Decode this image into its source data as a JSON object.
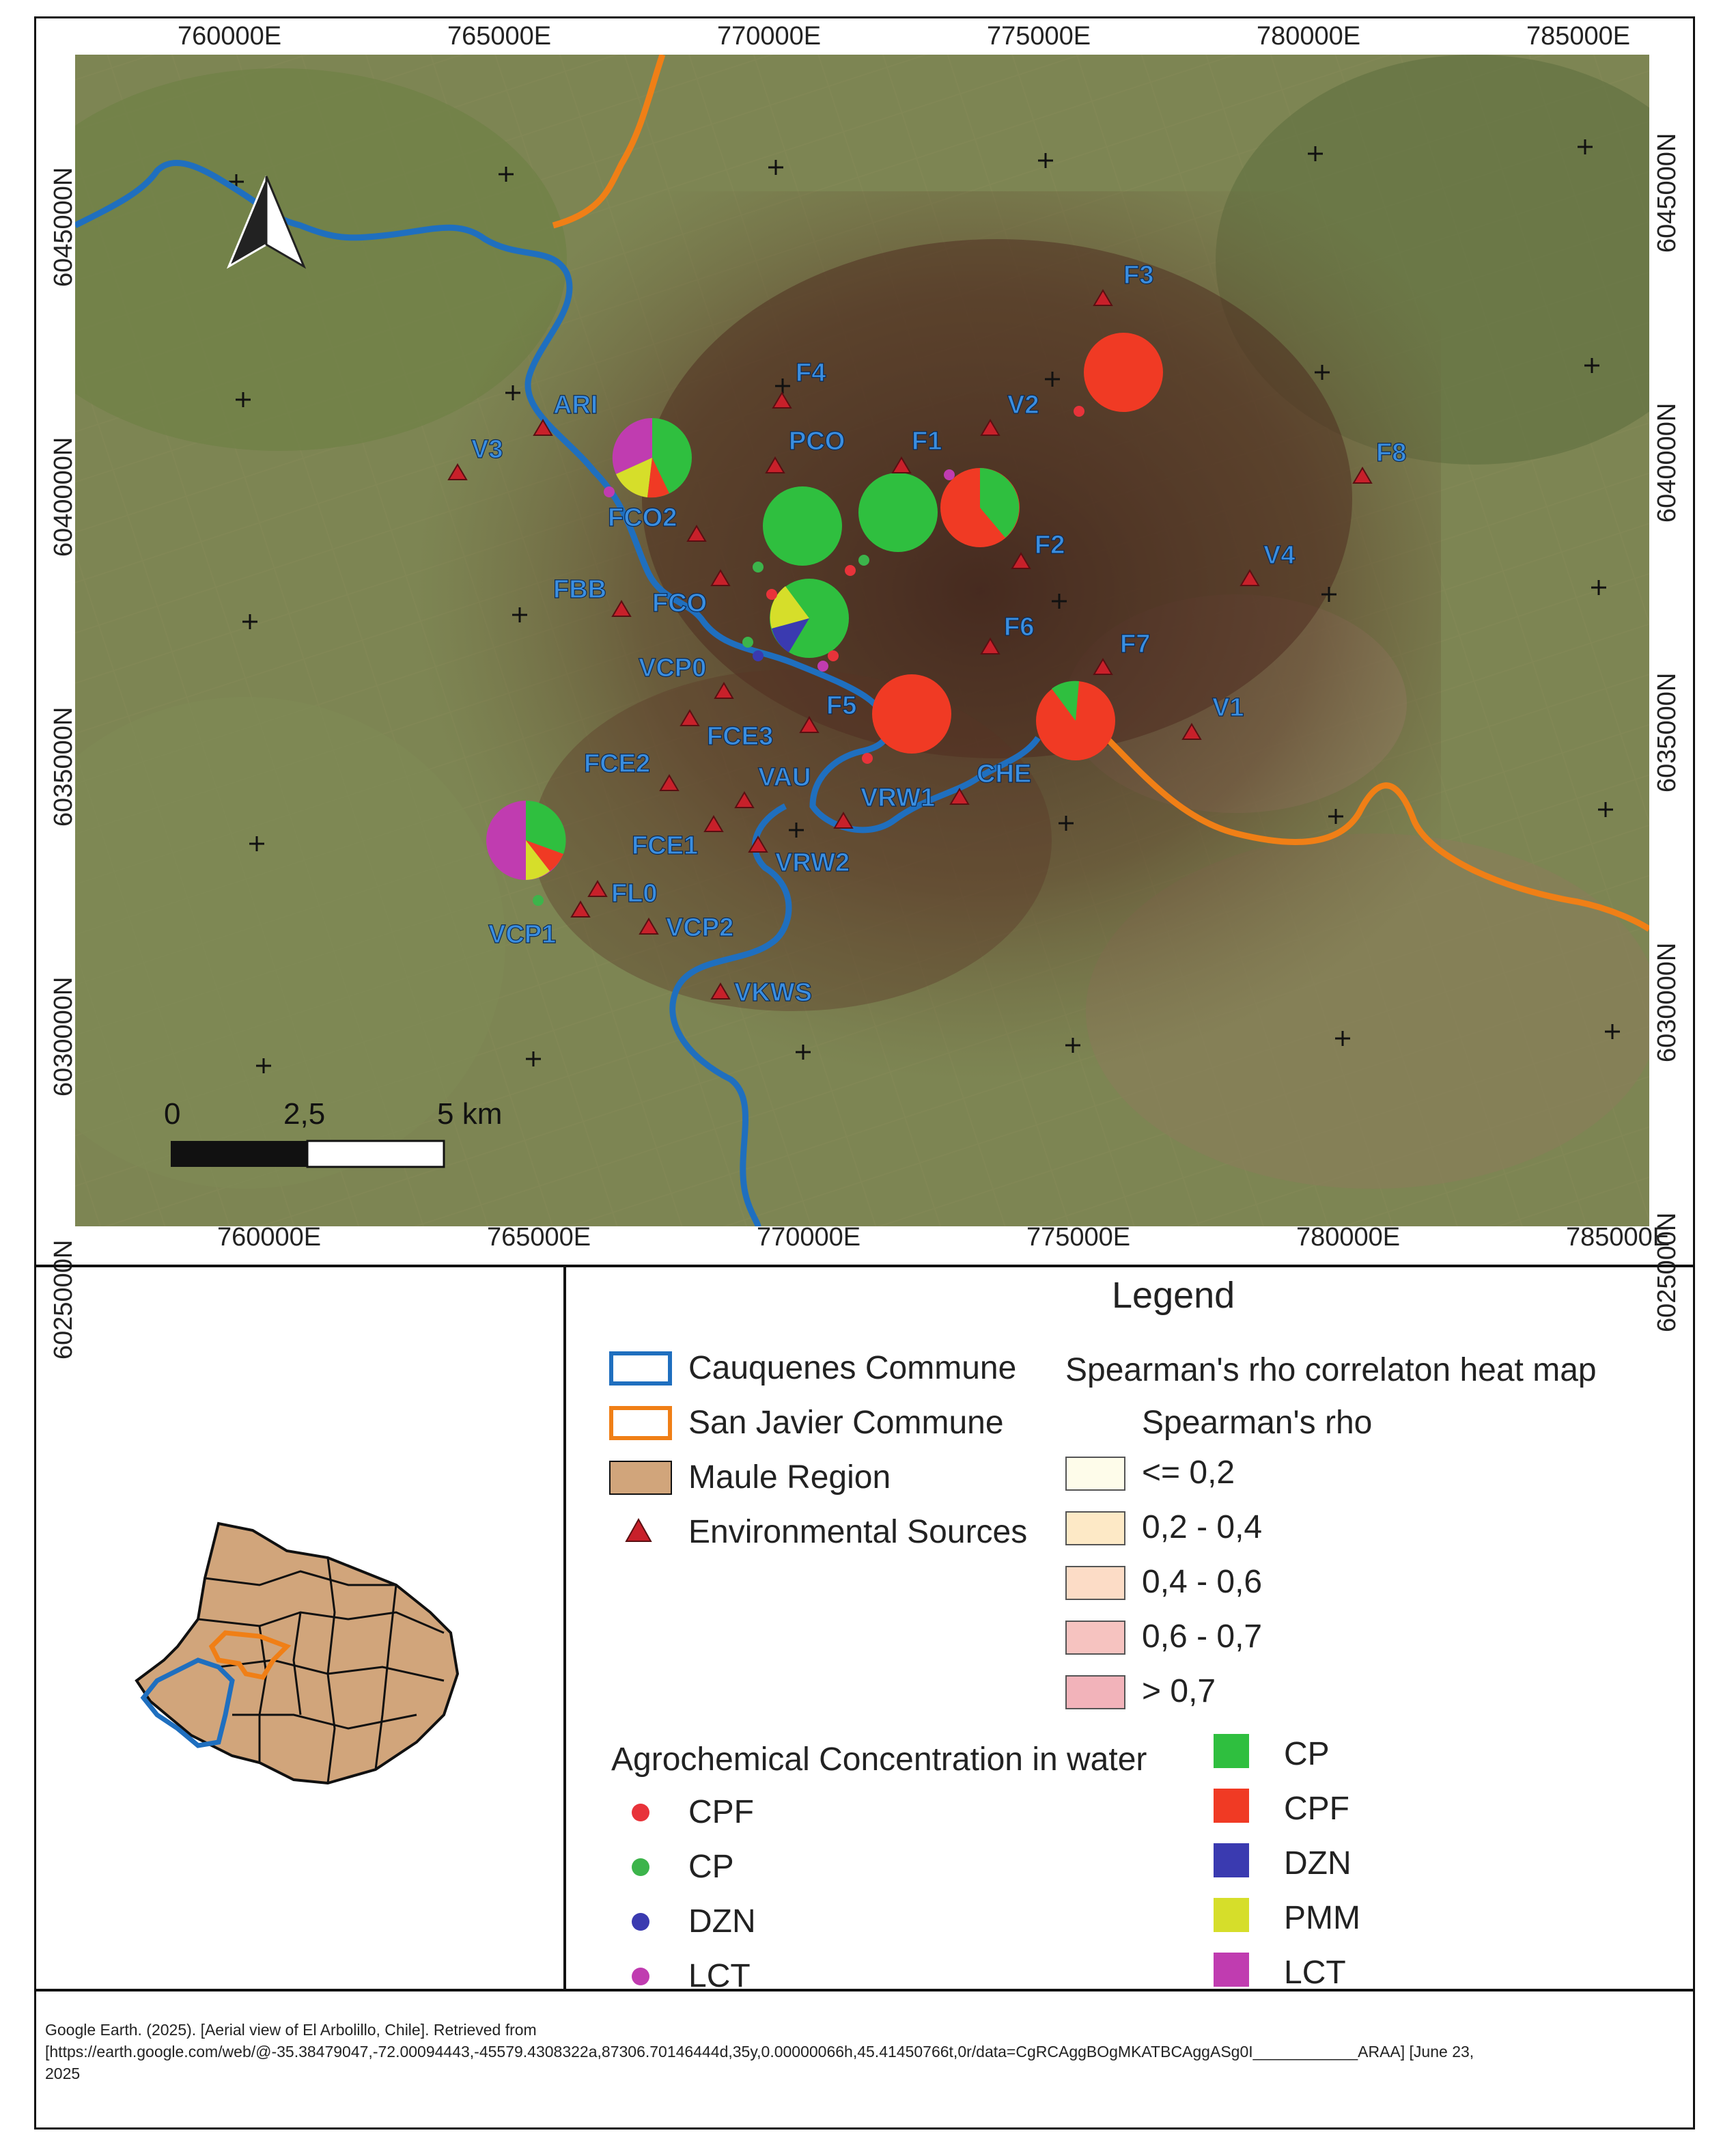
{
  "map": {
    "x_ticks_top": [
      "760000E",
      "765000E",
      "770000E",
      "775000E",
      "780000E",
      "785000E"
    ],
    "x_ticks_bottom": [
      "760000E",
      "765000E",
      "770000E",
      "775000E",
      "780000E",
      "785000E"
    ],
    "y_ticks_left": [
      "6045000N",
      "6040000N",
      "6035000N",
      "6030000N",
      "6025000N"
    ],
    "y_ticks_right": [
      "6045000N",
      "6040000N",
      "6035000N",
      "6030000N",
      "6025000N"
    ],
    "scalebar": {
      "labels": [
        "0",
        "2,5",
        "5 km"
      ]
    },
    "north_arrow": "north-arrow-icon",
    "colors": {
      "cauquenes": "#1f6fbf",
      "san_javier": "#f07f16",
      "source_marker": "#c8202a",
      "cp": "#2fbf3f",
      "cpf": "#f03a24",
      "dzn": "#3a3ab0",
      "pmm": "#d6de2a",
      "lct": "#c03cb0"
    },
    "sites": [
      "F3",
      "F4",
      "V2",
      "ARI",
      "PCO",
      "F1",
      "V3",
      "F8",
      "FCO2",
      "F2",
      "V4",
      "FBB",
      "FCO",
      "F6",
      "F7",
      "VCP0",
      "F5",
      "V1",
      "FCE3",
      "FCE2",
      "CHE",
      "VAU",
      "VRW1",
      "FCE1",
      "VRW2",
      "FL0",
      "VCP1",
      "VCP2",
      "VKWS"
    ]
  },
  "legend": {
    "title": "Legend",
    "boundaries": [
      {
        "label": "Cauquenes Commune"
      },
      {
        "label": "San Javier Commune"
      },
      {
        "label": "Maule Region"
      },
      {
        "label": "Environmental Sources"
      }
    ],
    "heatmap_title": "Spearman's rho correlaton heat map",
    "heatmap_subtitle": "Spearman's rho",
    "heatmap_classes": [
      {
        "label": "<= 0,2",
        "color": "#fefcea"
      },
      {
        "label": "0,2 - 0,4",
        "color": "#fde9c6"
      },
      {
        "label": "0,4 - 0,6",
        "color": "#fcdcc6"
      },
      {
        "label": "0,6 - 0,7",
        "color": "#f6c3c0"
      },
      {
        "label": "> 0,7",
        "color": "#f2b3ba"
      }
    ],
    "concentration_title": "Agrochemical Concentration in water",
    "concentration_items": [
      {
        "label": "CPF",
        "color": "#e8333a"
      },
      {
        "label": "CP",
        "color": "#3cb44b"
      },
      {
        "label": "DZN",
        "color": "#3a3ab0"
      },
      {
        "label": "LCT",
        "color": "#c03cb0"
      }
    ],
    "pie_items": [
      {
        "label": "CP",
        "color": "#2fbf3f"
      },
      {
        "label": "CPF",
        "color": "#f03a24"
      },
      {
        "label": "DZN",
        "color": "#3a3ab0"
      },
      {
        "label": "PMM",
        "color": "#d6de2a"
      },
      {
        "label": "LCT",
        "color": "#c03cb0"
      }
    ]
  },
  "citation": {
    "line1": "Google Earth. (2025). [Aerial view of El Arbolillo, Chile]. Retrieved from",
    "line2": "[https://earth.google.com/web/@-35.38479047,-72.00094443,-45579.4308322a,87306.70146444d,35y,0.00000066h,45.41450766t,0r/data=CgRCAggBOgMKATBCAggASg0I____________ARAA] [June 23,",
    "line3": "2025"
  }
}
